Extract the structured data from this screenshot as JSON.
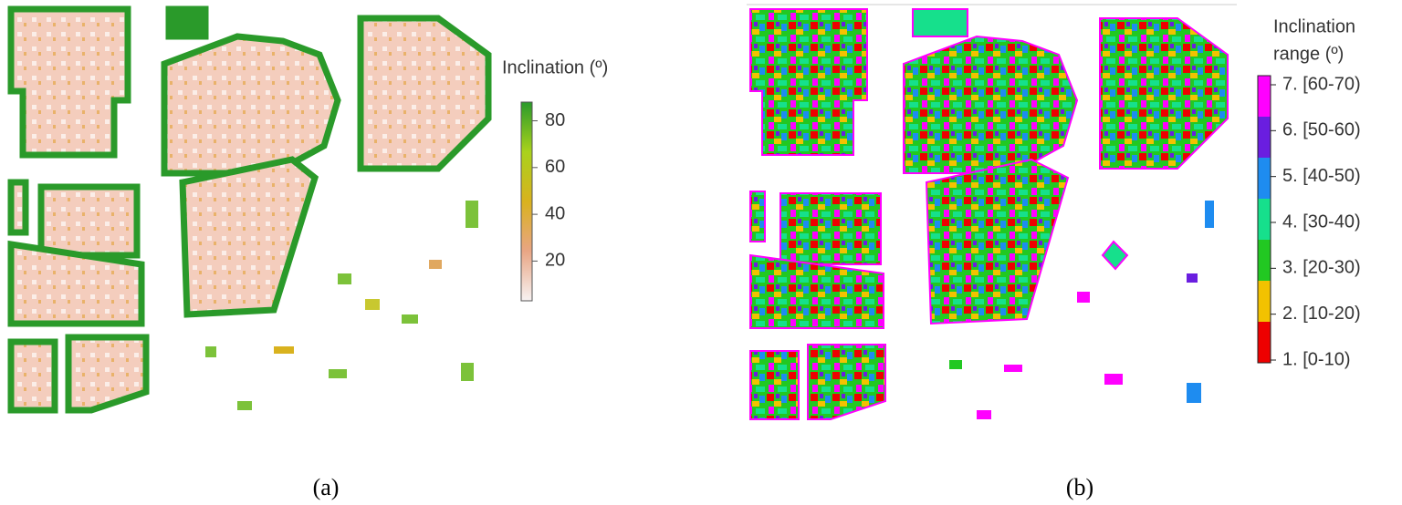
{
  "panel_a": {
    "caption": "(a)",
    "legend": {
      "title": "Inclination (º)",
      "range": [
        3,
        88
      ],
      "ticks": [
        20,
        40,
        60,
        80
      ],
      "colormap": [
        "#f7f2f2",
        "#e9a584",
        "#d9b21e",
        "#a9d21c",
        "#2a9a2a"
      ]
    }
  },
  "panel_b": {
    "caption": "(b)",
    "legend": {
      "title_lines": [
        "Inclination",
        "range (º)"
      ],
      "items": [
        {
          "label": "7.  [60-70)",
          "color": "#ff00ff"
        },
        {
          "label": "6.  [50-60)",
          "color": "#6a1ee0"
        },
        {
          "label": "5.  [40-50)",
          "color": "#1e8cf0"
        },
        {
          "label": "4.  [30-40)",
          "color": "#16e08c"
        },
        {
          "label": "3.  [20-30)",
          "color": "#22c822"
        },
        {
          "label": "2.  [10-20)",
          "color": "#f2c200"
        },
        {
          "label": "1.  [0-10)",
          "color": "#ee0000"
        }
      ]
    }
  }
}
